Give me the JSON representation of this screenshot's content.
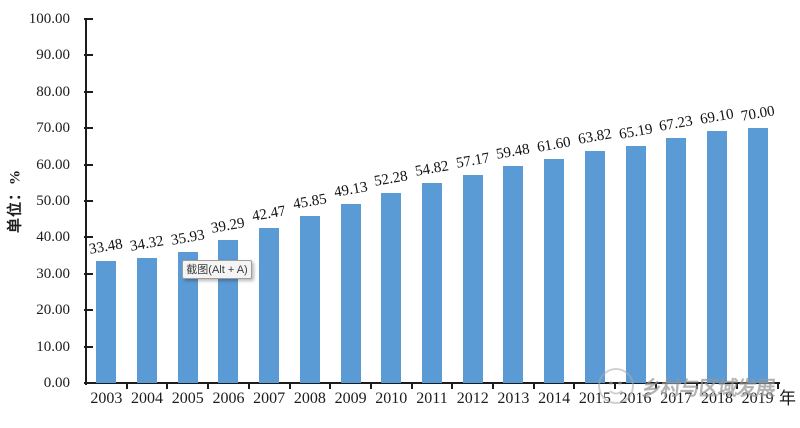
{
  "chart_data": {
    "type": "bar",
    "title": "",
    "categories": [
      "2003",
      "2004",
      "2005",
      "2006",
      "2007",
      "2008",
      "2009",
      "2010",
      "2011",
      "2012",
      "2013",
      "2014",
      "2015",
      "2016",
      "2017",
      "2018",
      "2019"
    ],
    "values": [
      33.48,
      34.32,
      35.93,
      39.29,
      42.47,
      45.85,
      49.13,
      52.28,
      54.82,
      57.17,
      59.48,
      61.6,
      63.82,
      65.19,
      67.23,
      69.1,
      70.0
    ],
    "xlabel": "年",
    "ylabel": "单位：%",
    "ylim": [
      0,
      100
    ],
    "ytick_step": 10,
    "ytick_decimals": 2,
    "value_label_decimals": 2,
    "grid": false,
    "legend": "none",
    "bar_color": "#5B9BD5",
    "axis_color": "#1c1c1c"
  },
  "overlays": {
    "tooltip_label": "截图(Alt + A)",
    "watermark_text": "乡村与区域发展",
    "watermark_logo": "mascot-circle-icon"
  }
}
